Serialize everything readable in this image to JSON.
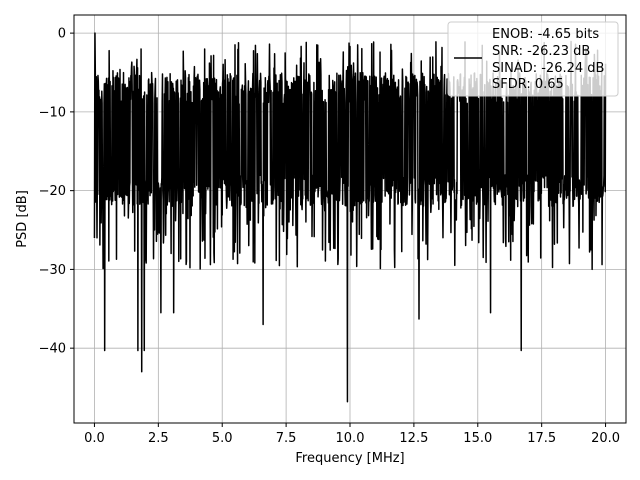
{
  "chart_data": {
    "type": "line",
    "title": "",
    "xlabel": "Frequency [MHz]",
    "ylabel": "PSD [dB]",
    "xlim": [
      -0.8,
      20.8
    ],
    "ylim": [
      -49.5,
      2.3
    ],
    "x_ticks": [
      0.0,
      2.5,
      5.0,
      7.5,
      10.0,
      12.5,
      15.0,
      17.5,
      20.0
    ],
    "x_tick_labels": [
      "0.0",
      "2.5",
      "5.0",
      "7.5",
      "10.0",
      "12.5",
      "15.0",
      "17.5",
      "20.0"
    ],
    "y_ticks": [
      0,
      -10,
      -20,
      -30,
      -40
    ],
    "y_tick_labels": [
      "0",
      "−10",
      "−20",
      "−30",
      "−40"
    ],
    "grid": true,
    "legend": {
      "placement": "top-right",
      "entries": [
        "ENOB: -4.65 bits",
        "SNR: -26.23 dB",
        "SINAD: -26.24 dB",
        "SFDR: 0.65"
      ]
    },
    "series": [
      {
        "color": "#000000",
        "x_range": [
          0.0,
          20.0
        ],
        "typical_band": [
          -22.0,
          -5.0
        ],
        "peaks": [
          {
            "x": 0.02,
            "y": 0.0
          },
          {
            "x": 5.5,
            "y": -1.5
          },
          {
            "x": 8.7,
            "y": -1.5
          },
          {
            "x": 10.3,
            "y": -1.5
          }
        ],
        "dips": [
          {
            "x": 0.4,
            "y": -40.3
          },
          {
            "x": 1.7,
            "y": -40.3
          },
          {
            "x": 1.85,
            "y": -43.0
          },
          {
            "x": 1.95,
            "y": -40.3
          },
          {
            "x": 2.6,
            "y": -35.5
          },
          {
            "x": 3.1,
            "y": -35.5
          },
          {
            "x": 6.6,
            "y": -37.0
          },
          {
            "x": 9.9,
            "y": -46.8
          },
          {
            "x": 12.7,
            "y": -36.3
          },
          {
            "x": 15.5,
            "y": -35.5
          },
          {
            "x": 16.7,
            "y": -40.3
          }
        ]
      }
    ]
  }
}
